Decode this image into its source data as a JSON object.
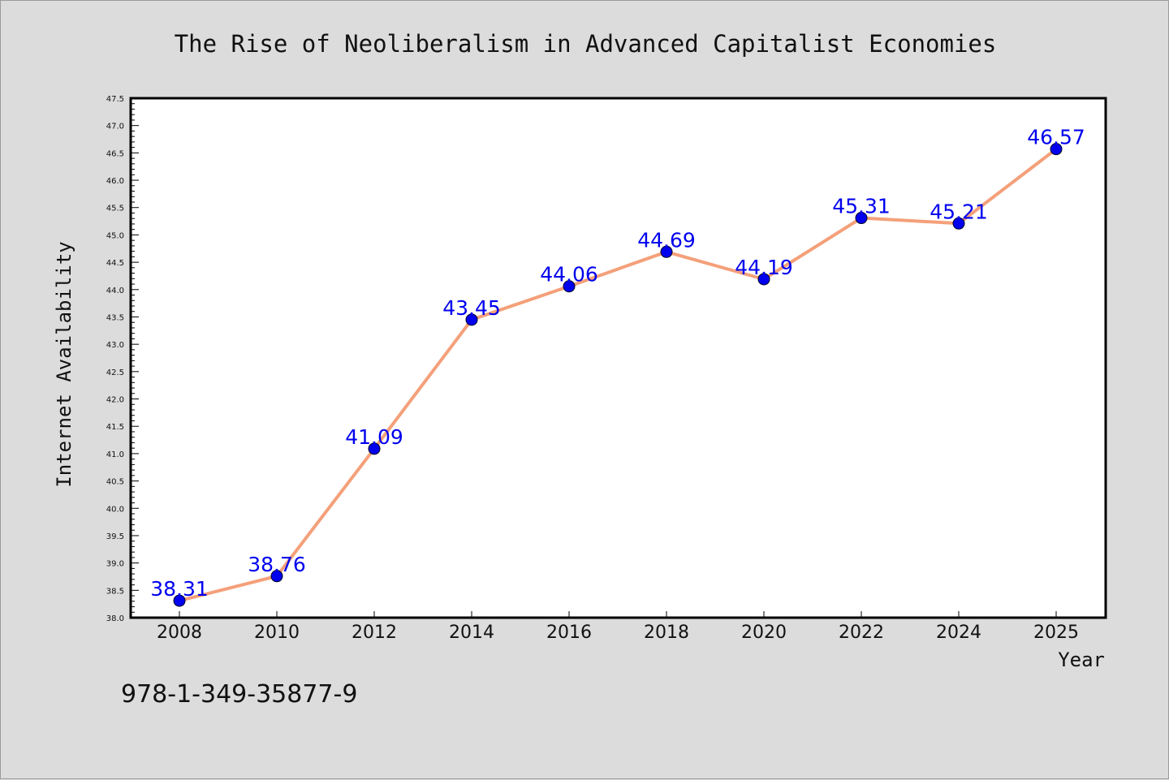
{
  "chart_data": {
    "type": "line",
    "title": "The Rise of Neoliberalism in Advanced Capitalist Economies",
    "xlabel": "Year",
    "ylabel": "Internet Availability",
    "categories": [
      "2008",
      "2010",
      "2012",
      "2014",
      "2016",
      "2018",
      "2020",
      "2022",
      "2024",
      "2025"
    ],
    "series": [
      {
        "values": [
          38.31,
          38.76,
          41.09,
          43.45,
          44.06,
          44.69,
          44.19,
          45.31,
          45.21,
          46.57
        ]
      }
    ],
    "data_labels": [
      "38.31",
      "38.76",
      "41.09",
      "43.45",
      "44.06",
      "44.69",
      "44.19",
      "45.31",
      "45.21",
      "46.57"
    ],
    "ylim": [
      38.0,
      47.5
    ],
    "yticks": [
      "38.0",
      "38.5",
      "39.0",
      "39.5",
      "40.0",
      "40.5",
      "41.0",
      "41.5",
      "42.0",
      "42.5",
      "43.0",
      "43.5",
      "44.0",
      "44.5",
      "45.0",
      "45.5",
      "46.0",
      "46.5",
      "47.0",
      "47.5"
    ],
    "grid": false,
    "legend": "none"
  },
  "colors": {
    "line": "#f4a07a",
    "marker": "#0000ee",
    "data_label": "#0000ee",
    "plot_background": "#ffffff",
    "figure_background": "#dcdcdc"
  },
  "footer": {
    "isbn": "978-1-349-35877-9"
  }
}
